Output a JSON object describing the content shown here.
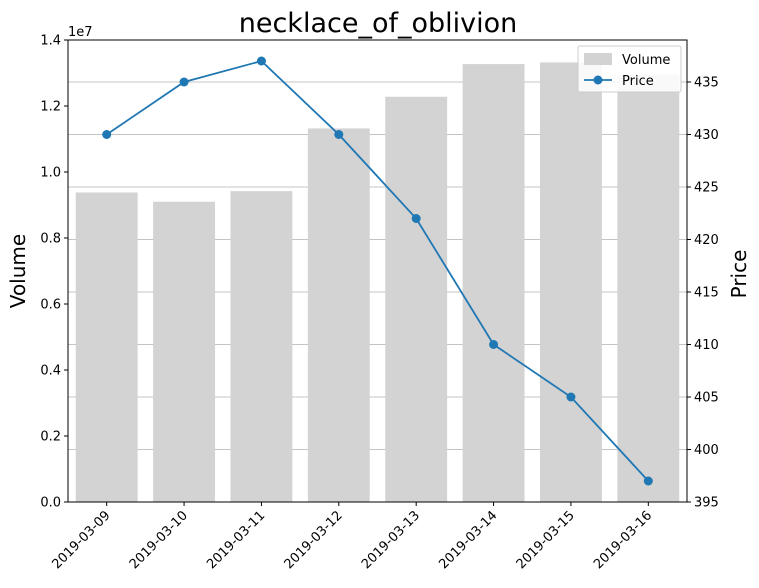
{
  "chart_data": {
    "type": "bar",
    "title": "necklace_of_oblivion",
    "categories": [
      "2019-03-09",
      "2019-03-10",
      "2019-03-11",
      "2019-03-12",
      "2019-03-13",
      "2019-03-14",
      "2019-03-15",
      "2019-03-16"
    ],
    "series": [
      {
        "name": "Volume",
        "type": "bar",
        "axis": "left",
        "color": "#d3d3d3",
        "values": [
          9380000,
          9100000,
          9420000,
          11320000,
          12280000,
          13270000,
          13320000,
          12950000
        ]
      },
      {
        "name": "Price",
        "type": "line",
        "axis": "right",
        "color": "#1f77b4",
        "marker": "circle",
        "values": [
          430,
          435,
          437,
          430,
          422,
          410,
          405,
          397
        ]
      }
    ],
    "y_left": {
      "label": "Volume",
      "lim": [
        0,
        14000000
      ],
      "ticks": [
        0,
        2000000,
        4000000,
        6000000,
        8000000,
        10000000,
        12000000,
        14000000
      ],
      "tick_labels": [
        "0.0",
        "0.2",
        "0.4",
        "0.6",
        "0.8",
        "1.0",
        "1.2",
        "1.4"
      ],
      "offset_text": "1e7"
    },
    "y_right": {
      "label": "Price",
      "lim": [
        395,
        439
      ],
      "ticks": [
        395,
        400,
        405,
        410,
        415,
        420,
        425,
        430,
        435
      ],
      "tick_labels": [
        "395",
        "400",
        "405",
        "410",
        "415",
        "420",
        "425",
        "430",
        "435"
      ]
    },
    "grid": "horizontal-right-axis",
    "legend": {
      "placement": "top-right",
      "entries": [
        "Volume",
        "Price"
      ]
    },
    "xtick_rotation": 45
  }
}
